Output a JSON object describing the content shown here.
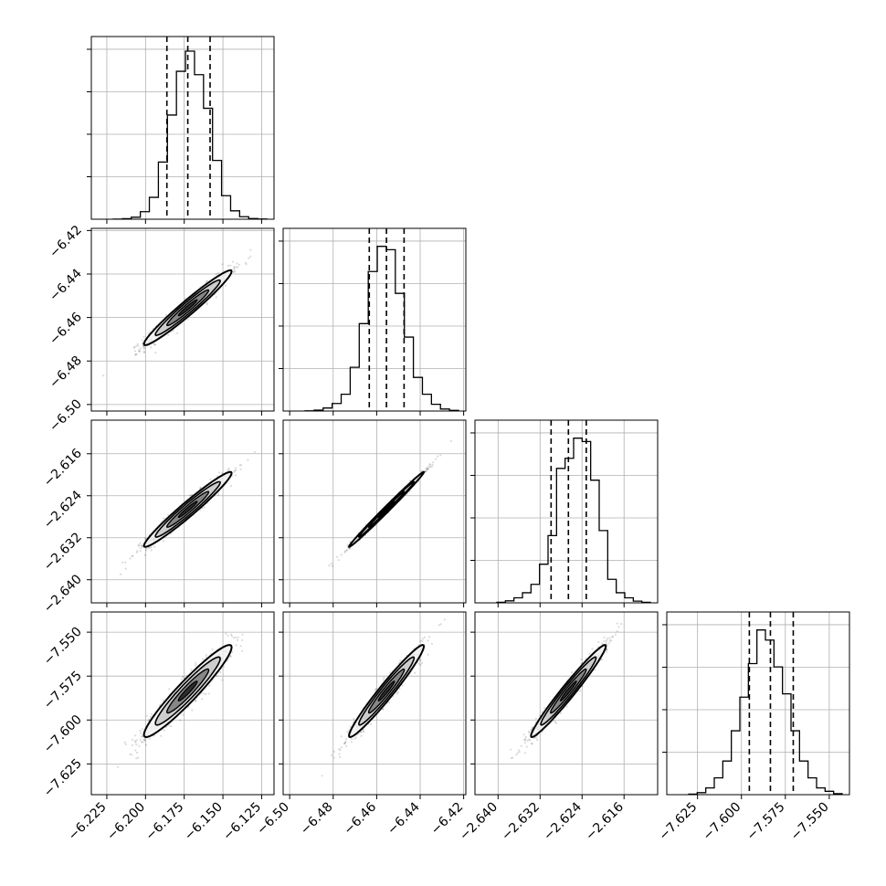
{
  "chart_data": {
    "type": "corner",
    "grid": true,
    "parameters": [
      {
        "range": [
          -6.235,
          -6.117
        ],
        "ticks": [
          -6.225,
          -6.2,
          -6.175,
          -6.15,
          -6.125
        ],
        "tick_labels": [
          "−6.225",
          "−6.200",
          "−6.175",
          "−6.150",
          "−6.125"
        ],
        "quantiles": [
          -6.1862,
          -6.1727,
          -6.1583
        ],
        "median": -6.1727,
        "sigma": 0.0135,
        "hist_bins": [
          0.0005,
          0.003,
          0.012,
          0.045,
          0.13,
          0.34,
          0.62,
          0.88,
          1.0,
          0.86,
          0.66,
          0.35,
          0.14,
          0.05,
          0.015,
          0.004,
          0.001
        ]
      },
      {
        "range": [
          -6.503,
          -6.419
        ],
        "ticks": [
          -6.5,
          -6.48,
          -6.46,
          -6.44,
          -6.42
        ],
        "tick_labels": [
          "−6.50",
          "−6.48",
          "−6.46",
          "−6.44",
          "−6.42"
        ],
        "quantiles": [
          -6.4634,
          -6.4555,
          -6.4474
        ],
        "median": -6.4555,
        "sigma": 0.0082,
        "hist_bins": [
          0.001,
          0.005,
          0.018,
          0.045,
          0.1,
          0.26,
          0.52,
          0.83,
          0.98,
          0.96,
          0.7,
          0.44,
          0.2,
          0.1,
          0.04,
          0.012,
          0.004
        ]
      },
      {
        "range": [
          -2.6444,
          -2.6096
        ],
        "ticks": [
          -2.64,
          -2.632,
          -2.624,
          -2.616
        ],
        "tick_labels": [
          "−2.640",
          "−2.632",
          "−2.624",
          "−2.616"
        ],
        "quantiles": [
          -2.6299,
          -2.6266,
          -2.6232
        ],
        "median": -2.6266,
        "sigma": 0.0034,
        "hist_bins": [
          0.003,
          0.012,
          0.03,
          0.06,
          0.11,
          0.23,
          0.4,
          0.8,
          0.86,
          0.98,
          0.96,
          0.73,
          0.43,
          0.14,
          0.06,
          0.03,
          0.01,
          0.003
        ]
      },
      {
        "range": [
          -7.6425,
          -7.5385
        ],
        "ticks": [
          -7.625,
          -7.6,
          -7.575,
          -7.55
        ],
        "tick_labels": [
          "−7.625",
          "−7.600",
          "−7.575",
          "−7.550"
        ],
        "quantiles": [
          -7.5955,
          -7.5835,
          -7.5705
        ],
        "median": -7.5835,
        "sigma": 0.0125,
        "hist_bins": [
          0.003,
          0.012,
          0.04,
          0.1,
          0.2,
          0.38,
          0.58,
          0.78,
          0.98,
          0.92,
          0.76,
          0.6,
          0.38,
          0.2,
          0.1,
          0.04,
          0.02,
          0.006
        ]
      }
    ],
    "correlations": {
      "1-0": 0.97,
      "2-0": 0.97,
      "2-1": 0.995,
      "3-0": 0.95,
      "3-1": 0.97,
      "3-2": 0.975
    }
  }
}
